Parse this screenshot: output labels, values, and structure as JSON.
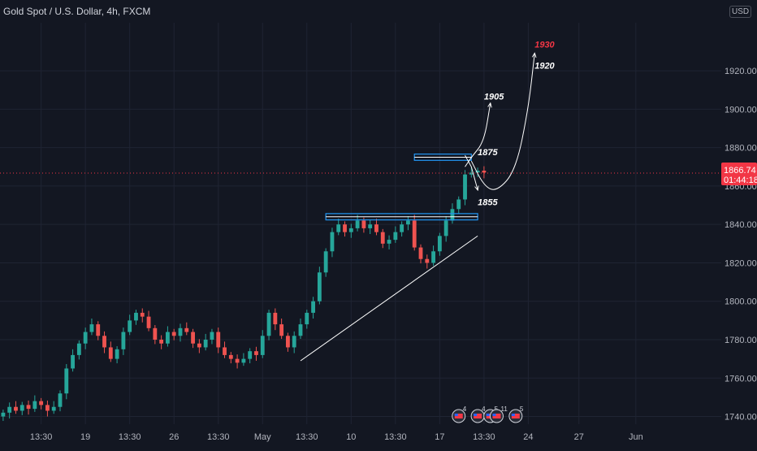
{
  "title": "Gold Spot / U.S. Dollar, 4h, FXCM",
  "currency": "USD",
  "colors": {
    "background": "#131722",
    "up": "#26a69a",
    "down": "#ef5350",
    "annotation": "#ffffff",
    "zone": "#2196f3",
    "price_tag": "#f23645"
  },
  "chart_data": {
    "type": "candlestick",
    "symbol": "Gold Spot / U.S. Dollar",
    "interval": "4h",
    "source": "FXCM",
    "y_ticks": [
      1740,
      1760,
      1780,
      1800,
      1820,
      1840,
      1860,
      1880,
      1900,
      1920
    ],
    "y_tick_labels": [
      "1740.00",
      "1760.00",
      "1780.00",
      "1800.00",
      "1820.00",
      "1840.00",
      "1860.00",
      "1880.00",
      "1900.00",
      "1920.00"
    ],
    "ylim": [
      1736,
      1945
    ],
    "x_ticks": [
      {
        "label": "13:30",
        "bar": 6
      },
      {
        "label": "19",
        "bar": 13
      },
      {
        "label": "13:30",
        "bar": 20
      },
      {
        "label": "26",
        "bar": 27
      },
      {
        "label": "13:30",
        "bar": 34
      },
      {
        "label": "May",
        "bar": 41
      },
      {
        "label": "13:30",
        "bar": 48
      },
      {
        "label": "10",
        "bar": 55
      },
      {
        "label": "13:30",
        "bar": 62
      },
      {
        "label": "17",
        "bar": 69
      },
      {
        "label": "13:30",
        "bar": 76
      },
      {
        "label": "24",
        "bar": 83
      },
      {
        "label": "27",
        "bar": 91
      },
      {
        "label": "Jun",
        "bar": 100
      }
    ],
    "xlim_bars": [
      0,
      114
    ],
    "bar_close": [
      1742,
      1745,
      1743,
      1746,
      1744,
      1748,
      1746,
      1743,
      1745,
      1752,
      1765,
      1772,
      1778,
      1784,
      1788,
      1782,
      1776,
      1770,
      1775,
      1784,
      1790,
      1794,
      1792,
      1786,
      1780,
      1778,
      1784,
      1782,
      1786,
      1784,
      1778,
      1776,
      1780,
      1784,
      1776,
      1772,
      1770,
      1768,
      1770,
      1774,
      1772,
      1782,
      1794,
      1788,
      1782,
      1776,
      1782,
      1788,
      1794,
      1800,
      1815,
      1826,
      1836,
      1840,
      1836,
      1838,
      1842,
      1838,
      1840,
      1836,
      1830,
      1832,
      1836,
      1840,
      1842,
      1828,
      1822,
      1820,
      1826,
      1834,
      1842,
      1848,
      1853,
      1866,
      1867,
      1868,
      1867
    ],
    "current_price": "1866.74",
    "countdown": "01:44:18",
    "zones": [
      {
        "from_bar": 65,
        "to_bar": 74,
        "low": 1874,
        "high": 1876
      },
      {
        "from_bar": 51,
        "to_bar": 75,
        "low": 1843,
        "high": 1845
      }
    ],
    "trendline": [
      {
        "bar": 47,
        "price": 1769
      },
      {
        "bar": 75,
        "price": 1834
      }
    ],
    "projections": [
      {
        "label": "1905",
        "from_bar": 72,
        "from_price": 1863,
        "path": [
          [
            73,
            1870
          ],
          [
            74,
            1875
          ],
          [
            76,
            1883
          ],
          [
            77,
            1903
          ]
        ]
      },
      {
        "label": "1855",
        "path": [
          [
            73,
            1876
          ],
          [
            74,
            1870
          ],
          [
            75,
            1858
          ]
        ]
      },
      {
        "label": "1930",
        "path": [
          [
            74,
            1873
          ],
          [
            76,
            1860
          ],
          [
            78,
            1857
          ],
          [
            81,
            1868
          ],
          [
            83,
            1900
          ],
          [
            84,
            1929
          ]
        ]
      }
    ],
    "annotations": [
      {
        "text": "1930",
        "bar": 84,
        "price": 1932,
        "color": "red"
      },
      {
        "text": "1920",
        "bar": 84,
        "price": 1921,
        "color": "white"
      },
      {
        "text": "1905",
        "bar": 76,
        "price": 1905,
        "color": "white"
      },
      {
        "text": "1875",
        "bar": 75,
        "price": 1876,
        "color": "white"
      },
      {
        "text": "1855",
        "bar": 75,
        "price": 1850,
        "color": "white"
      }
    ],
    "events": [
      {
        "label": "4",
        "bar": 72
      },
      {
        "label": "4",
        "bar": 75
      },
      {
        "label": "5",
        "bar": 77
      },
      {
        "label": "11",
        "bar": 78
      },
      {
        "label": "5",
        "bar": 81
      }
    ]
  }
}
